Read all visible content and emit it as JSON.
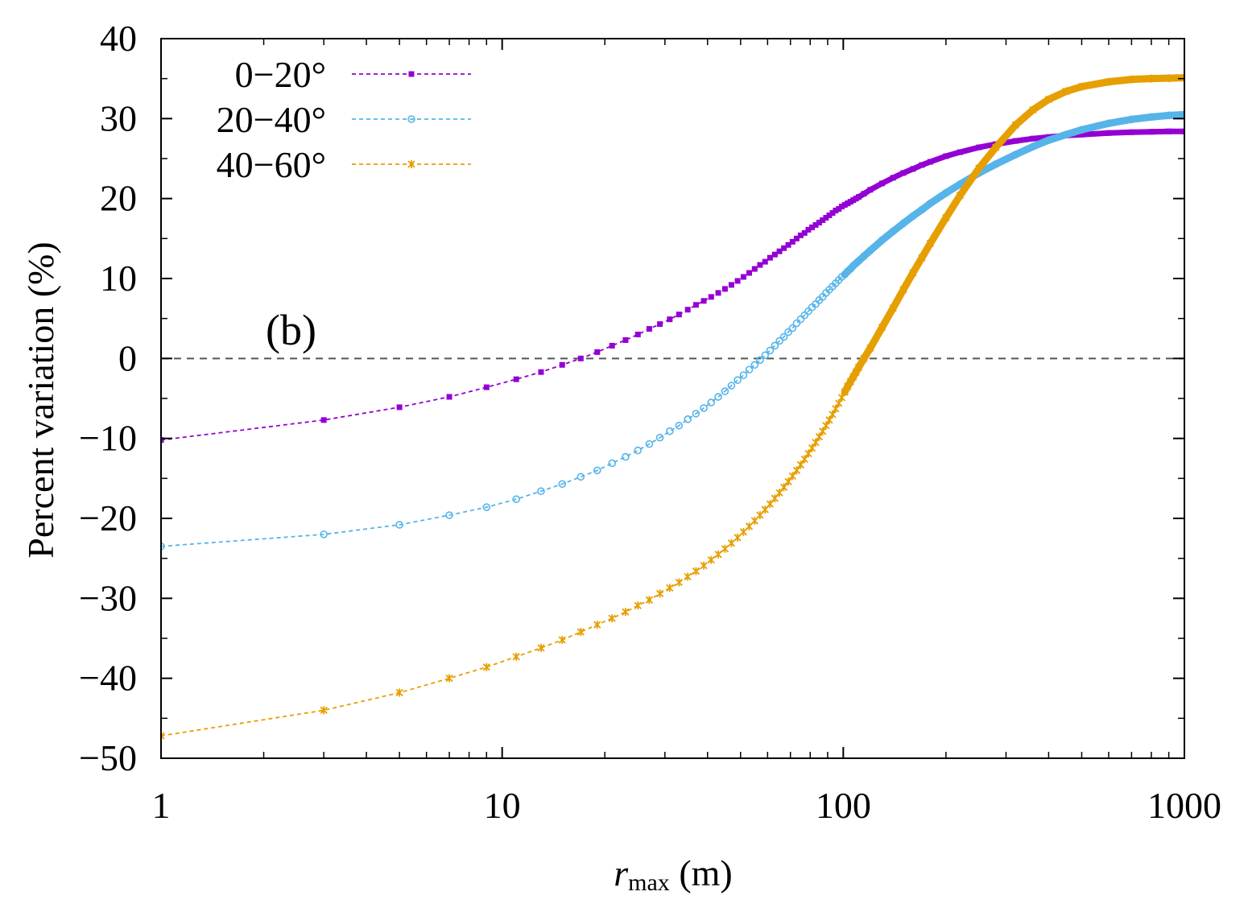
{
  "chart_data": {
    "type": "line",
    "title": "",
    "panel_label": "(b)",
    "xlabel_var": "r",
    "xlabel_sub": "max",
    "xlabel_unit": " (m)",
    "ylabel": "Percent variation (%)",
    "xscale": "log",
    "xlim": [
      1,
      1000
    ],
    "ylim": [
      -50,
      40
    ],
    "xticks": [
      1,
      10,
      100,
      1000
    ],
    "xtick_labels": [
      "1",
      "10",
      "100",
      "1000"
    ],
    "yticks": [
      -50,
      -40,
      -30,
      -20,
      -10,
      0,
      10,
      20,
      30,
      40
    ],
    "ytick_labels": [
      "−50",
      "−40",
      "−30",
      "−20",
      "−10",
      "0",
      "10",
      "20",
      "30",
      "40"
    ],
    "reference_line": {
      "y": 0,
      "style": "dashed",
      "color": "#555555"
    },
    "legend_position": "top-left",
    "series": [
      {
        "name": "0−20°",
        "marker": "filled-square",
        "color": "#9400d3",
        "x": [
          1,
          3,
          5,
          7,
          9,
          11,
          13,
          15,
          17,
          19,
          21,
          23,
          25,
          27,
          29,
          31,
          33,
          35,
          37,
          39,
          41,
          43,
          45,
          47,
          49,
          51,
          53,
          55,
          57,
          59,
          61,
          63,
          65,
          67,
          69,
          71,
          73,
          75,
          77,
          79,
          81,
          83,
          85,
          87,
          89,
          91,
          93,
          95,
          97,
          99,
          101,
          103,
          105,
          107,
          109,
          111,
          115,
          120,
          130,
          140,
          150,
          160,
          170,
          180,
          200,
          220,
          250,
          280,
          320,
          360,
          400,
          450,
          500,
          600,
          700,
          800,
          900,
          1000
        ],
        "values": [
          -10.2,
          -7.7,
          -6.1,
          -4.8,
          -3.6,
          -2.6,
          -1.7,
          -0.8,
          0.0,
          0.8,
          1.6,
          2.3,
          3.0,
          3.7,
          4.3,
          4.9,
          5.5,
          6.1,
          6.7,
          7.2,
          7.7,
          8.2,
          8.7,
          9.2,
          9.7,
          10.2,
          10.7,
          11.2,
          11.7,
          12.1,
          12.6,
          13.0,
          13.4,
          13.8,
          14.2,
          14.6,
          15.0,
          15.4,
          15.7,
          16.1,
          16.4,
          16.7,
          17.0,
          17.3,
          17.6,
          17.9,
          18.2,
          18.5,
          18.7,
          19.0,
          19.2,
          19.4,
          19.6,
          19.8,
          20.0,
          20.2,
          20.6,
          21.1,
          21.9,
          22.6,
          23.2,
          23.7,
          24.2,
          24.6,
          25.3,
          25.8,
          26.4,
          26.8,
          27.2,
          27.5,
          27.7,
          27.9,
          28.0,
          28.2,
          28.3,
          28.35,
          28.4,
          28.4
        ]
      },
      {
        "name": "20−40°",
        "marker": "open-circle",
        "color": "#56b4e9",
        "x": [
          1,
          3,
          5,
          7,
          9,
          11,
          13,
          15,
          17,
          19,
          21,
          23,
          25,
          27,
          29,
          31,
          33,
          35,
          37,
          39,
          41,
          43,
          45,
          47,
          49,
          51,
          53,
          55,
          57,
          59,
          61,
          63,
          65,
          67,
          69,
          71,
          73,
          75,
          77,
          79,
          81,
          83,
          85,
          87,
          89,
          91,
          93,
          95,
          97,
          99,
          101,
          103,
          105,
          107,
          109,
          111,
          115,
          120,
          130,
          140,
          150,
          160,
          170,
          180,
          200,
          220,
          250,
          280,
          320,
          360,
          400,
          450,
          500,
          600,
          700,
          800,
          900,
          1000
        ],
        "values": [
          -23.5,
          -22.0,
          -20.8,
          -19.6,
          -18.6,
          -17.6,
          -16.6,
          -15.7,
          -14.8,
          -14.0,
          -13.1,
          -12.3,
          -11.5,
          -10.7,
          -9.9,
          -9.1,
          -8.4,
          -7.6,
          -6.9,
          -6.2,
          -5.5,
          -4.8,
          -4.1,
          -3.4,
          -2.7,
          -2.1,
          -1.4,
          -0.8,
          -0.2,
          0.4,
          1.0,
          1.6,
          2.2,
          2.7,
          3.3,
          3.8,
          4.4,
          4.9,
          5.4,
          5.9,
          6.4,
          6.8,
          7.3,
          7.7,
          8.2,
          8.6,
          9.0,
          9.4,
          9.8,
          10.2,
          10.5,
          10.9,
          11.2,
          11.6,
          11.9,
          12.2,
          12.8,
          13.5,
          14.8,
          15.9,
          16.9,
          17.8,
          18.6,
          19.4,
          20.7,
          21.8,
          23.2,
          24.3,
          25.5,
          26.5,
          27.3,
          28.0,
          28.6,
          29.4,
          29.9,
          30.2,
          30.4,
          30.5
        ]
      },
      {
        "name": "40−60°",
        "marker": "star",
        "color": "#e69f00",
        "x": [
          1,
          3,
          5,
          7,
          9,
          11,
          13,
          15,
          17,
          19,
          21,
          23,
          25,
          27,
          29,
          31,
          33,
          35,
          37,
          39,
          41,
          43,
          45,
          47,
          49,
          51,
          53,
          55,
          57,
          59,
          61,
          63,
          65,
          67,
          69,
          71,
          73,
          75,
          77,
          79,
          81,
          83,
          85,
          87,
          89,
          91,
          93,
          95,
          97,
          99,
          101,
          103,
          105,
          107,
          109,
          111,
          115,
          120,
          130,
          140,
          150,
          160,
          170,
          180,
          200,
          220,
          250,
          280,
          320,
          360,
          400,
          450,
          500,
          600,
          700,
          800,
          900,
          1000
        ],
        "values": [
          -47.2,
          -44.0,
          -41.8,
          -40.0,
          -38.6,
          -37.3,
          -36.2,
          -35.2,
          -34.2,
          -33.3,
          -32.5,
          -31.7,
          -30.9,
          -30.2,
          -29.4,
          -28.7,
          -28.0,
          -27.3,
          -26.6,
          -25.9,
          -25.2,
          -24.5,
          -23.8,
          -23.1,
          -22.4,
          -21.7,
          -21.0,
          -20.3,
          -19.6,
          -18.9,
          -18.2,
          -17.5,
          -16.8,
          -16.1,
          -15.4,
          -14.7,
          -14.0,
          -13.3,
          -12.6,
          -11.9,
          -11.2,
          -10.5,
          -9.8,
          -9.1,
          -8.4,
          -7.7,
          -7.0,
          -6.3,
          -5.6,
          -4.9,
          -4.2,
          -3.5,
          -2.9,
          -2.3,
          -1.7,
          -1.1,
          0.0,
          1.3,
          3.9,
          6.3,
          8.6,
          10.7,
          12.6,
          14.4,
          17.6,
          20.4,
          23.8,
          26.4,
          29.2,
          31.1,
          32.4,
          33.4,
          34.0,
          34.6,
          34.9,
          35.0,
          35.05,
          35.1
        ]
      }
    ]
  }
}
